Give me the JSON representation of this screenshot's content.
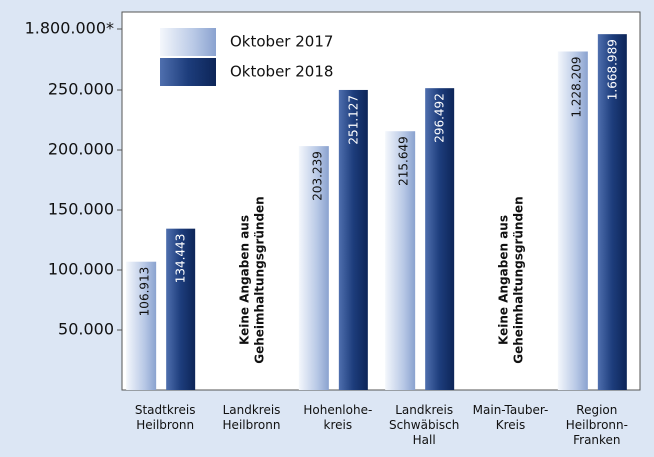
{
  "chart_data": {
    "type": "bar",
    "categories": [
      "Stadtkreis\nHeilbronn",
      "Landkreis\nHeilbronn",
      "Hohenlohe-\nkreis",
      "Landkreis\nSchwäbisch\nHall",
      "Main-Tauber-\nKreis",
      "Region\nHeilbronn-\nFranken"
    ],
    "series": [
      {
        "name": "Oktober 2017",
        "color": "#9fb4da",
        "values": [
          106913,
          null,
          203239,
          215649,
          null,
          1228209
        ],
        "value_labels": [
          "106.913",
          null,
          "203.239",
          "215.649",
          null,
          "1.228.209"
        ]
      },
      {
        "name": "Oktober 2018",
        "color": "#1d3d7c",
        "values": [
          134443,
          null,
          251127,
          296492,
          null,
          1668989
        ],
        "value_labels": [
          "134.443",
          null,
          "251.127",
          "296.492",
          null,
          "1.668.989"
        ]
      }
    ],
    "notes": [
      null,
      "Keine Angaben aus\nGeheimhaltungsgründen",
      null,
      null,
      "Keine Angaben aus\nGeheimhaltungsgründen",
      null
    ],
    "ylim": [
      0,
      1800000
    ],
    "yticks": [
      {
        "value": 50000,
        "label": "50.000"
      },
      {
        "value": 100000,
        "label": "100.000"
      },
      {
        "value": 150000,
        "label": "150.000"
      },
      {
        "value": 200000,
        "label": "200.000"
      },
      {
        "value": 250000,
        "label": "250.000"
      },
      {
        "value": 1800000,
        "label": "1.800.000*"
      }
    ],
    "legend": "top-left"
  }
}
